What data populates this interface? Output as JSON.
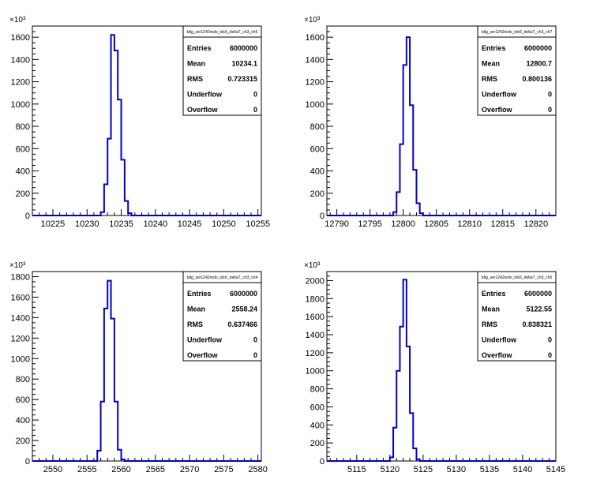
{
  "exponent_label": "×10³",
  "stats_labels": [
    "Entries",
    "Mean",
    "RMS",
    "Underflow",
    "Overflow"
  ],
  "line_color": "#0000cc",
  "chart_data": [
    {
      "type": "histogram",
      "stats_title": "tdig_ser1242redo_tdc6_deltaT_ch3_ch6",
      "stats": {
        "Entries": "6000000",
        "Mean": "10234.1",
        "RMS": "0.723315",
        "Underflow": "0",
        "Overflow": "0"
      },
      "xlim": [
        10222,
        10255.5
      ],
      "ylim": [
        0,
        1700
      ],
      "xticks": [
        10225,
        10230,
        10235,
        10240,
        10245,
        10250,
        10255
      ],
      "yticks": [
        0,
        200,
        400,
        600,
        800,
        1000,
        1200,
        1400,
        1600
      ],
      "bin_width": 0.5,
      "bins": [
        {
          "x": 10232,
          "y": 30
        },
        {
          "x": 10232.5,
          "y": 280
        },
        {
          "x": 10233,
          "y": 690
        },
        {
          "x": 10233.5,
          "y": 1620
        },
        {
          "x": 10234,
          "y": 1480
        },
        {
          "x": 10234.5,
          "y": 1040
        },
        {
          "x": 10235,
          "y": 500
        },
        {
          "x": 10235.5,
          "y": 130
        },
        {
          "x": 10236,
          "y": 20
        }
      ]
    },
    {
      "type": "histogram",
      "stats_title": "tdig_ser1242redo_tdc6_deltaT_ch3_ch7",
      "stats": {
        "Entries": "6000000",
        "Mean": "12800.7",
        "RMS": "0.800136",
        "Underflow": "0",
        "Overflow": "0"
      },
      "xlim": [
        12788.5,
        12823
      ],
      "ylim": [
        0,
        1700
      ],
      "xticks": [
        12790,
        12795,
        12800,
        12805,
        12810,
        12815,
        12820
      ],
      "yticks": [
        0,
        200,
        400,
        600,
        800,
        1000,
        1200,
        1400,
        1600
      ],
      "bin_width": 0.5,
      "bins": [
        {
          "x": 12798.5,
          "y": 30
        },
        {
          "x": 12799,
          "y": 210
        },
        {
          "x": 12799.5,
          "y": 640
        },
        {
          "x": 12800,
          "y": 1350
        },
        {
          "x": 12800.5,
          "y": 1600
        },
        {
          "x": 12801,
          "y": 990
        },
        {
          "x": 12801.5,
          "y": 410
        },
        {
          "x": 12802,
          "y": 110
        },
        {
          "x": 12802.5,
          "y": 20
        }
      ]
    },
    {
      "type": "histogram",
      "stats_title": "tdig_ser1242redo_tdc6_deltaT_ch3_ch4",
      "stats": {
        "Entries": "6000000",
        "Mean": "2558.24",
        "RMS": "0.637466",
        "Underflow": "0",
        "Overflow": "0"
      },
      "xlim": [
        2547,
        2580.5
      ],
      "ylim": [
        0,
        1850
      ],
      "xticks": [
        2550,
        2555,
        2560,
        2565,
        2570,
        2575,
        2580
      ],
      "yticks": [
        0,
        200,
        400,
        600,
        800,
        1000,
        1200,
        1400,
        1600,
        1800
      ],
      "bin_width": 0.5,
      "bins": [
        {
          "x": 2556.5,
          "y": 100
        },
        {
          "x": 2557,
          "y": 580
        },
        {
          "x": 2557.5,
          "y": 1490
        },
        {
          "x": 2558,
          "y": 1760
        },
        {
          "x": 2558.5,
          "y": 1390
        },
        {
          "x": 2559,
          "y": 580
        },
        {
          "x": 2559.5,
          "y": 110
        },
        {
          "x": 2560,
          "y": 15
        }
      ]
    },
    {
      "type": "histogram",
      "stats_title": "tdig_ser1242redo_tdc6_deltaT_ch3_ch5",
      "stats": {
        "Entries": "6000000",
        "Mean": "5122.55",
        "RMS": "0.838321",
        "Underflow": "0",
        "Overflow": "0"
      },
      "xlim": [
        5110.5,
        5145
      ],
      "ylim": [
        0,
        2100
      ],
      "xticks": [
        5115,
        5120,
        5125,
        5130,
        5135,
        5140,
        5145
      ],
      "yticks": [
        0,
        200,
        400,
        600,
        800,
        1000,
        1200,
        1400,
        1600,
        1800,
        2000
      ],
      "bin_width": 0.5,
      "bins": [
        {
          "x": 5120,
          "y": 40
        },
        {
          "x": 5120.5,
          "y": 370
        },
        {
          "x": 5121,
          "y": 1000
        },
        {
          "x": 5121.5,
          "y": 1490
        },
        {
          "x": 5122,
          "y": 2010
        },
        {
          "x": 5122.5,
          "y": 1270
        },
        {
          "x": 5123,
          "y": 530
        },
        {
          "x": 5123.5,
          "y": 140
        },
        {
          "x": 5124,
          "y": 20
        }
      ]
    }
  ]
}
